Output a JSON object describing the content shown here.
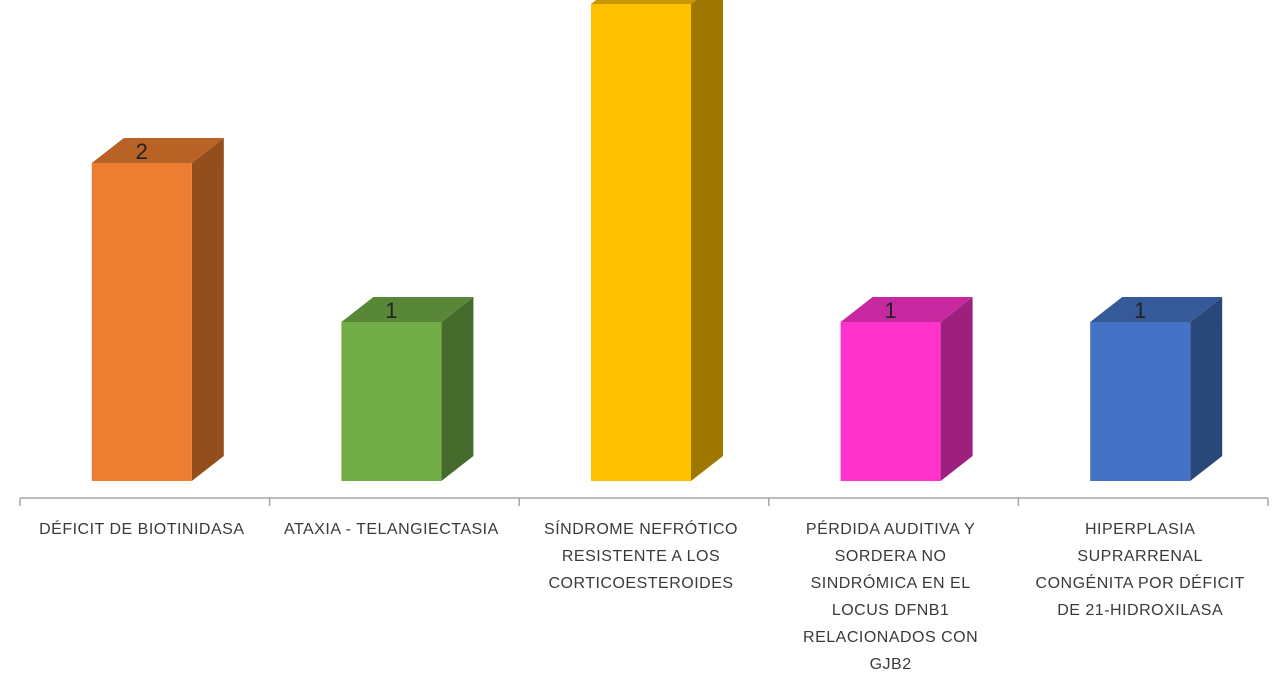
{
  "chart_data": {
    "type": "bar",
    "style": "3d-column",
    "categories": [
      "DÉFICIT DE BIOTINIDASA",
      "ATAXIA - TELANGIECTASIA",
      "SÍNDROME NEFRÓTICO RESISTENTE A LOS CORTICOESTEROIDES",
      "PÉRDIDA AUDITIVA Y SORDERA NO SINDRÓMICA EN EL LOCUS DFNB1 RELACIONADOS CON GJB2",
      "HIPERPLASIA SUPRARRENAL CONGÉNITA POR DÉFICIT DE 21-HIDROXILASA"
    ],
    "values": [
      2,
      1,
      3,
      1,
      1
    ],
    "data_labels": [
      "2",
      "1",
      "",
      "1",
      "1"
    ],
    "colors": [
      "#ED7D31",
      "#70AD47",
      "#FFC000",
      "#FF33CC",
      "#4472C4"
    ],
    "ylim": [
      0,
      3
    ],
    "grid": false,
    "legend": "none",
    "title": "",
    "xlabel": "",
    "ylabel": ""
  }
}
